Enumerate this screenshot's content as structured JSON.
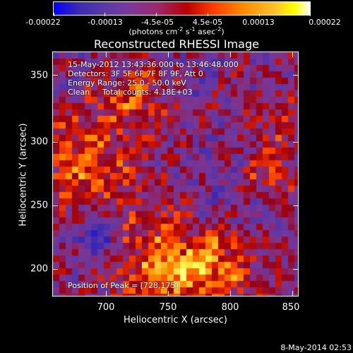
{
  "colorbar": {
    "tick_labels": [
      "-0.00022",
      "-0.00013",
      "-4.5e-05",
      "4.5e-05",
      "0.00013",
      "0.00022"
    ],
    "units_prefix": "(photons cm",
    "units_exp1": "-2",
    "units_mid1": " s",
    "units_exp2": "-1",
    "units_mid2": " asec",
    "units_exp3": "-2",
    "units_suffix": ")"
  },
  "title": "Reconstructed RHESSI Image",
  "info": {
    "line1": "15-May-2012 13:43:36.000 to 13:46:48.000",
    "line2": "Detectors: 3F 5F 6F 7F 8F 9F, Att 0",
    "line3": "Energy Range: 25.0 - 50.0 keV",
    "line4": "Clean     Total counts: 4.18E+03"
  },
  "peak": "Position of Peak = [728,175]",
  "xlabel": "Heliocentric X (arcsec)",
  "ylabel": "Heliocentric Y (arcsec)",
  "xticks": [
    "700",
    "750",
    "800",
    "850"
  ],
  "yticks": [
    "350",
    "300",
    "250",
    "200"
  ],
  "footer": "8-May-2014 02:53",
  "chart_data": {
    "type": "heatmap",
    "title": "Reconstructed RHESSI Image",
    "xlabel": "Heliocentric X (arcsec)",
    "ylabel": "Heliocentric Y (arcsec)",
    "xlim": [
      661,
      853
    ],
    "ylim": [
      174,
      367
    ],
    "colorbar_range": [
      -0.00022,
      0.00022
    ],
    "colormap": "blue-purple-red-yellow-white"
  }
}
